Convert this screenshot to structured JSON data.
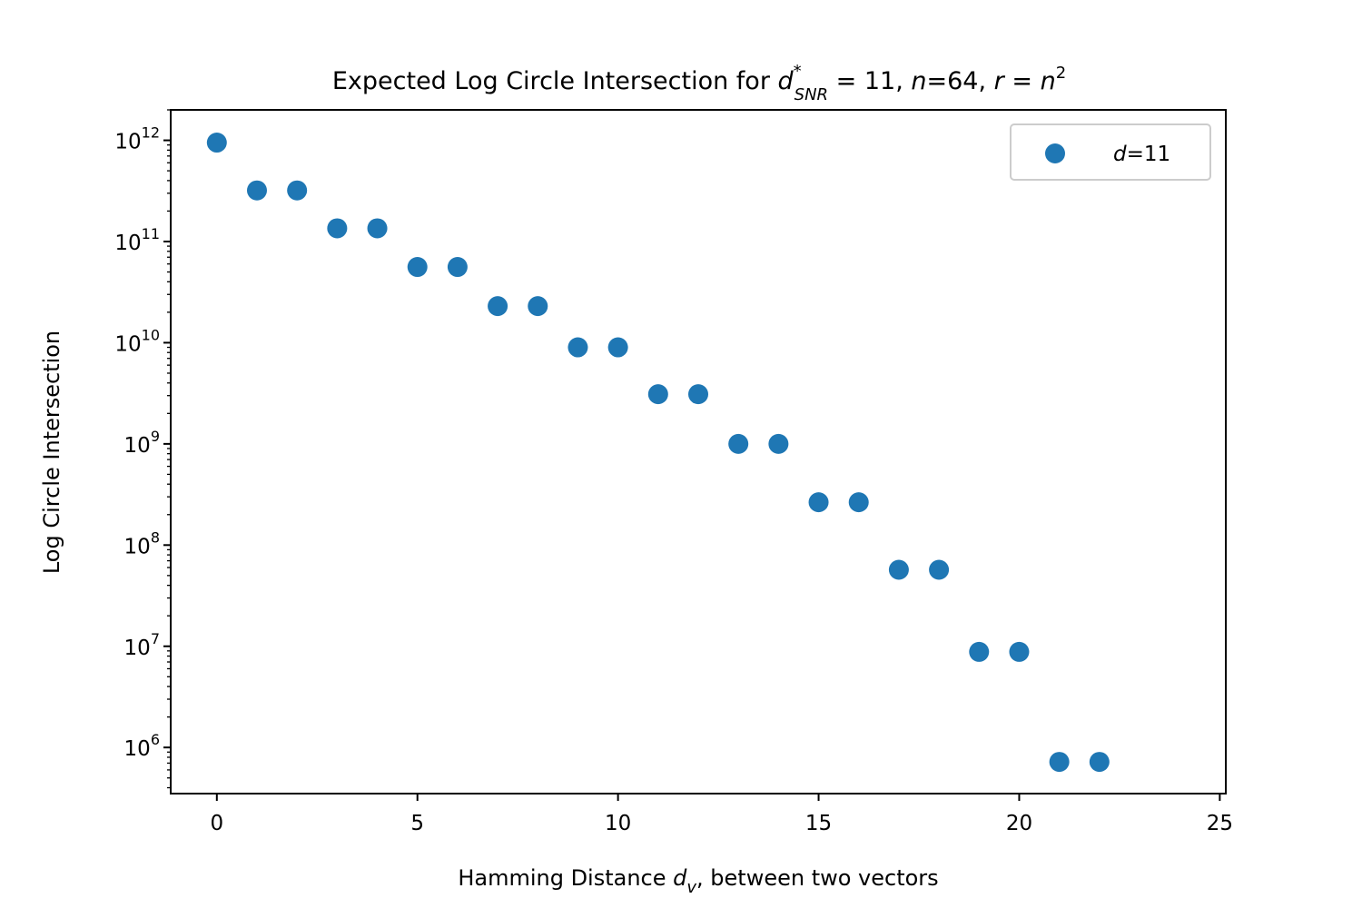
{
  "chart_data": {
    "type": "scatter",
    "title": {
      "prefix": "Expected Log Circle Intersection for ",
      "d": "d",
      "star": "*",
      "snr_sub": "SNR",
      "eq_11": " = 11, ",
      "n": "n",
      "n_eq": "=64, ",
      "r": "r",
      "r_eq": " = ",
      "n2": "n",
      "sq": "2"
    },
    "xlabel": {
      "prefix": "Hamming Distance ",
      "d": "d",
      "v_sub": "v",
      "suffix": ", between two vectors"
    },
    "ylabel": "Log Circle Intersection",
    "xlim": [
      -1.15,
      25.15
    ],
    "ylim": [
      350000,
      2000000000000
    ],
    "yscale": "log",
    "grid": false,
    "legend_position": "top-right",
    "x_ticks": [
      0,
      5,
      10,
      15,
      20,
      25
    ],
    "y_ticks": [
      {
        "exp": 6,
        "base": "10",
        "sup": "6"
      },
      {
        "exp": 7,
        "base": "10",
        "sup": "7"
      },
      {
        "exp": 8,
        "base": "10",
        "sup": "8"
      },
      {
        "exp": 9,
        "base": "10",
        "sup": "9"
      },
      {
        "exp": 10,
        "base": "10",
        "sup": "10"
      },
      {
        "exp": 11,
        "base": "10",
        "sup": "11"
      },
      {
        "exp": 12,
        "base": "10",
        "sup": "12"
      }
    ],
    "series": [
      {
        "name": {
          "d": "d",
          "rest": "=11"
        },
        "color": "#1f77b4",
        "points": [
          {
            "x": 0,
            "y": 950000000000
          },
          {
            "x": 1,
            "y": 320000000000
          },
          {
            "x": 2,
            "y": 320000000000
          },
          {
            "x": 3,
            "y": 135000000000
          },
          {
            "x": 4,
            "y": 135000000000
          },
          {
            "x": 5,
            "y": 56000000000
          },
          {
            "x": 6,
            "y": 56000000000
          },
          {
            "x": 7,
            "y": 23000000000
          },
          {
            "x": 8,
            "y": 23000000000
          },
          {
            "x": 9,
            "y": 9000000000
          },
          {
            "x": 10,
            "y": 9000000000
          },
          {
            "x": 11,
            "y": 3100000000
          },
          {
            "x": 12,
            "y": 3100000000
          },
          {
            "x": 13,
            "y": 1000000000
          },
          {
            "x": 14,
            "y": 1000000000
          },
          {
            "x": 15,
            "y": 265000000
          },
          {
            "x": 16,
            "y": 265000000
          },
          {
            "x": 17,
            "y": 57000000
          },
          {
            "x": 18,
            "y": 57000000
          },
          {
            "x": 19,
            "y": 8800000
          },
          {
            "x": 20,
            "y": 8800000
          },
          {
            "x": 21,
            "y": 720000
          },
          {
            "x": 22,
            "y": 720000
          }
        ]
      }
    ]
  }
}
